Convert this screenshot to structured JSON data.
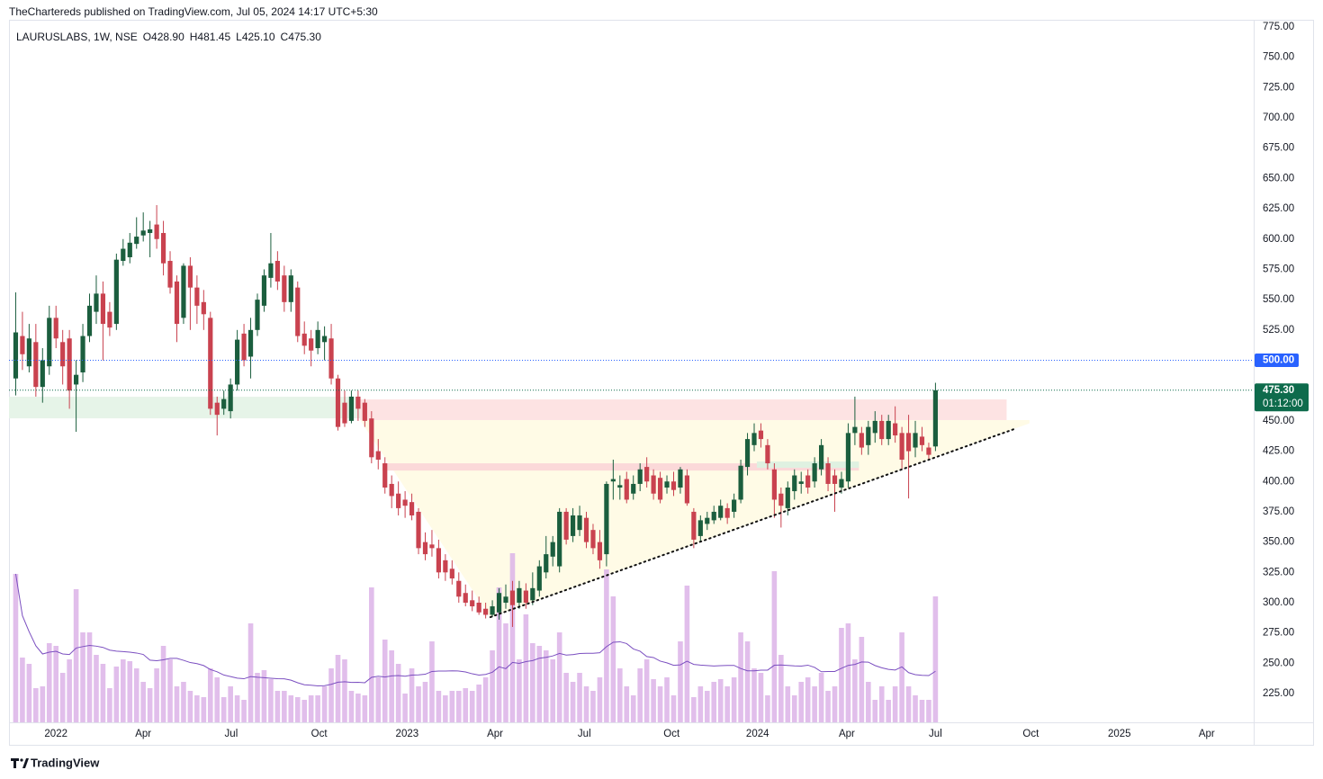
{
  "header": {
    "published": "TheChartereds published on TradingView.com, Jul 05, 2024 14:17 UTC+5:30",
    "symbol": "LAURUSLABS, 1W, NSE",
    "ohlc": [
      "O428.90",
      "H481.45",
      "L425.10",
      "C475.30"
    ]
  },
  "footer": {
    "brand": "TradingView"
  },
  "chart_data": {
    "type": "candlestick",
    "ohlc": [
      [
        485,
        556,
        471,
        523
      ],
      [
        520,
        540,
        492,
        505
      ],
      [
        495,
        530,
        490,
        518
      ],
      [
        515,
        530,
        470,
        478
      ],
      [
        478,
        510,
        465,
        500
      ],
      [
        495,
        545,
        488,
        535
      ],
      [
        535,
        545,
        510,
        518
      ],
      [
        515,
        525,
        480,
        495
      ],
      [
        518,
        525,
        460,
        475
      ],
      [
        480,
        500,
        441,
        488
      ],
      [
        490,
        530,
        482,
        520
      ],
      [
        520,
        555,
        515,
        545
      ],
      [
        540,
        570,
        530,
        555
      ],
      [
        555,
        565,
        500,
        530
      ],
      [
        540,
        548,
        520,
        527
      ],
      [
        530,
        588,
        525,
        583
      ],
      [
        582,
        600,
        578,
        592
      ],
      [
        585,
        605,
        580,
        597
      ],
      [
        596,
        618,
        592,
        602
      ],
      [
        603,
        622,
        598,
        607
      ],
      [
        605,
        615,
        585,
        608
      ],
      [
        612,
        628,
        592,
        600
      ],
      [
        605,
        615,
        570,
        580
      ],
      [
        582,
        590,
        555,
        560
      ],
      [
        565,
        570,
        515,
        530
      ],
      [
        535,
        580,
        530,
        578
      ],
      [
        578,
        585,
        525,
        560
      ],
      [
        560,
        570,
        530,
        545
      ],
      [
        548,
        558,
        525,
        538
      ],
      [
        535,
        540,
        455,
        460
      ],
      [
        465,
        470,
        438,
        455
      ],
      [
        460,
        475,
        455,
        468
      ],
      [
        458,
        485,
        452,
        480
      ],
      [
        480,
        525,
        475,
        517
      ],
      [
        522,
        530,
        495,
        500
      ],
      [
        503,
        535,
        485,
        525
      ],
      [
        525,
        555,
        520,
        550
      ],
      [
        545,
        575,
        540,
        570
      ],
      [
        568,
        605,
        560,
        580
      ],
      [
        582,
        590,
        558,
        565
      ],
      [
        570,
        578,
        540,
        548
      ],
      [
        548,
        575,
        540,
        570
      ],
      [
        560,
        565,
        515,
        520
      ],
      [
        522,
        532,
        505,
        512
      ],
      [
        518,
        525,
        495,
        508
      ],
      [
        510,
        532,
        505,
        525
      ],
      [
        515,
        528,
        500,
        520
      ],
      [
        518,
        530,
        480,
        485
      ],
      [
        485,
        488,
        442,
        445
      ],
      [
        465,
        475,
        445,
        448
      ],
      [
        450,
        475,
        448,
        470
      ],
      [
        470,
        475,
        450,
        460
      ],
      [
        465,
        468,
        445,
        450
      ],
      [
        452,
        458,
        415,
        420
      ],
      [
        425,
        435,
        410,
        418
      ],
      [
        415,
        420,
        390,
        395
      ],
      [
        398,
        405,
        378,
        388
      ],
      [
        390,
        400,
        372,
        378
      ],
      [
        385,
        392,
        370,
        380
      ],
      [
        383,
        390,
        368,
        372
      ],
      [
        375,
        378,
        340,
        345
      ],
      [
        350,
        358,
        335,
        340
      ],
      [
        348,
        360,
        338,
        345
      ],
      [
        345,
        352,
        320,
        325
      ],
      [
        335,
        340,
        318,
        325
      ],
      [
        328,
        335,
        315,
        320
      ],
      [
        318,
        325,
        300,
        305
      ],
      [
        308,
        315,
        297,
        300
      ],
      [
        302,
        310,
        293,
        297
      ],
      [
        300,
        305,
        290,
        292
      ],
      [
        295,
        300,
        287,
        290
      ],
      [
        290,
        302,
        288,
        297
      ],
      [
        292,
        312,
        286,
        308
      ],
      [
        300,
        315,
        295,
        305
      ],
      [
        310,
        318,
        280,
        298
      ],
      [
        300,
        318,
        295,
        312
      ],
      [
        310,
        316,
        295,
        300
      ],
      [
        302,
        325,
        298,
        312
      ],
      [
        310,
        335,
        305,
        330
      ],
      [
        325,
        355,
        320,
        340
      ],
      [
        338,
        355,
        330,
        350
      ],
      [
        330,
        378,
        325,
        375
      ],
      [
        375,
        378,
        348,
        352
      ],
      [
        355,
        378,
        350,
        372
      ],
      [
        360,
        380,
        355,
        372
      ],
      [
        370,
        375,
        345,
        350
      ],
      [
        360,
        365,
        340,
        345
      ],
      [
        350,
        360,
        328,
        335
      ],
      [
        340,
        400,
        330,
        398
      ],
      [
        400,
        418,
        385,
        402
      ],
      [
        395,
        405,
        385,
        397
      ],
      [
        402,
        408,
        382,
        385
      ],
      [
        390,
        405,
        385,
        398
      ],
      [
        398,
        415,
        392,
        410
      ],
      [
        412,
        420,
        395,
        400
      ],
      [
        405,
        410,
        385,
        390
      ],
      [
        403,
        408,
        382,
        385
      ],
      [
        395,
        405,
        390,
        400
      ],
      [
        400,
        408,
        388,
        393
      ],
      [
        395,
        412,
        390,
        410
      ],
      [
        405,
        410,
        380,
        382
      ],
      [
        375,
        378,
        345,
        352
      ],
      [
        355,
        372,
        350,
        368
      ],
      [
        365,
        375,
        360,
        370
      ],
      [
        368,
        380,
        365,
        375
      ],
      [
        370,
        385,
        368,
        380
      ],
      [
        378,
        382,
        365,
        370
      ],
      [
        375,
        390,
        370,
        385
      ],
      [
        385,
        418,
        382,
        413
      ],
      [
        412,
        440,
        405,
        435
      ],
      [
        430,
        448,
        425,
        440
      ],
      [
        442,
        448,
        428,
        435
      ],
      [
        430,
        435,
        410,
        415
      ],
      [
        410,
        415,
        370,
        385
      ],
      [
        390,
        395,
        362,
        380
      ],
      [
        378,
        400,
        372,
        395
      ],
      [
        392,
        410,
        385,
        405
      ],
      [
        398,
        408,
        390,
        400
      ],
      [
        405,
        410,
        390,
        395
      ],
      [
        400,
        420,
        395,
        415
      ],
      [
        410,
        435,
        405,
        430
      ],
      [
        415,
        420,
        392,
        398
      ],
      [
        405,
        410,
        375,
        398
      ],
      [
        395,
        408,
        390,
        402
      ],
      [
        400,
        448,
        395,
        440
      ],
      [
        440,
        470,
        430,
        445
      ],
      [
        440,
        445,
        422,
        428
      ],
      [
        430,
        450,
        422,
        445
      ],
      [
        440,
        458,
        432,
        450
      ],
      [
        450,
        455,
        430,
        435
      ],
      [
        435,
        455,
        430,
        450
      ],
      [
        448,
        462,
        432,
        438
      ],
      [
        440,
        445,
        410,
        418
      ],
      [
        440,
        455,
        386,
        425
      ],
      [
        428,
        450,
        420,
        440
      ],
      [
        437,
        445,
        425,
        430
      ],
      [
        428,
        432,
        418,
        422
      ],
      [
        428.9,
        481.45,
        425.1,
        475.3
      ]
    ],
    "volume": [
      165,
      72,
      65,
      38,
      40,
      88,
      85,
      55,
      70,
      148,
      100,
      100,
      75,
      65,
      38,
      62,
      70,
      68,
      60,
      45,
      38,
      60,
      85,
      70,
      40,
      45,
      35,
      30,
      28,
      60,
      50,
      28,
      40,
      30,
      25,
      110,
      55,
      58,
      48,
      35,
      35,
      30,
      28,
      25,
      30,
      30,
      40,
      60,
      75,
      70,
      35,
      32,
      30,
      150,
      50,
      92,
      80,
      65,
      32,
      60,
      40,
      45,
      90,
      35,
      30,
      35,
      35,
      38,
      35,
      42,
      50,
      80,
      150,
      110,
      188,
      70,
      120,
      88,
      85,
      80,
      70,
      100,
      55,
      45,
      55,
      40,
      35,
      50,
      170,
      140,
      60,
      40,
      30,
      60,
      70,
      48,
      40,
      50,
      30,
      90,
      152,
      28,
      40,
      35,
      45,
      48,
      40,
      50,
      100,
      90,
      60,
      55,
      30,
      168,
      75,
      40,
      30,
      45,
      50,
      40,
      55,
      35,
      40,
      105,
      110,
      70,
      95,
      45,
      25,
      40,
      25,
      40,
      100,
      40,
      30,
      25,
      25,
      140
    ],
    "up_color": "#1b5e3e",
    "down_color": "#c9424f",
    "volume_color": "#dcb3e8",
    "volume_ma_color": "#7b4fc0",
    "vlim": [
      0,
      200
    ],
    "xlim": [
      -1,
      184
    ],
    "ylim": [
      201.3,
      780.9
    ],
    "xticks": [
      {
        "value": 6,
        "label": "2022"
      },
      {
        "value": 19,
        "label": "Apr"
      },
      {
        "value": 32.1,
        "label": "Jul"
      },
      {
        "value": 45.2,
        "label": "Oct"
      },
      {
        "value": 58.3,
        "label": "2023"
      },
      {
        "value": 71.4,
        "label": "Apr"
      },
      {
        "value": 84.7,
        "label": "Jul"
      },
      {
        "value": 97.7,
        "label": "Oct"
      },
      {
        "value": 110.5,
        "label": "2024"
      },
      {
        "value": 123.8,
        "label": "Apr"
      },
      {
        "value": 137,
        "label": "Jul"
      },
      {
        "value": 151.2,
        "label": "Oct"
      },
      {
        "value": 164.4,
        "label": "2025"
      },
      {
        "value": 177.4,
        "label": "Apr"
      }
    ],
    "yticks": [
      {
        "value": 225,
        "label": "225.00"
      },
      {
        "value": 250,
        "label": "250.00"
      },
      {
        "value": 275,
        "label": "275.00"
      },
      {
        "value": 300,
        "label": "300.00"
      },
      {
        "value": 325,
        "label": "325.00"
      },
      {
        "value": 350,
        "label": "350.00"
      },
      {
        "value": 375,
        "label": "375.00"
      },
      {
        "value": 400,
        "label": "400.00"
      },
      {
        "value": 425,
        "label": "425.00"
      },
      {
        "value": 450,
        "label": "450.00"
      },
      {
        "value": 475,
        "label": "475.00"
      },
      {
        "value": 500,
        "label": "500.00"
      },
      {
        "value": 525,
        "label": "525.00"
      },
      {
        "value": 550,
        "label": "550.00"
      },
      {
        "value": 575,
        "label": "575.00"
      },
      {
        "value": 600,
        "label": "600.00"
      },
      {
        "value": 625,
        "label": "625.00"
      },
      {
        "value": 650,
        "label": "650.00"
      },
      {
        "value": 675,
        "label": "675.00"
      },
      {
        "value": 700,
        "label": "700.00"
      },
      {
        "value": 725,
        "label": "725.00"
      },
      {
        "value": 750,
        "label": "750.00"
      },
      {
        "value": 775,
        "label": "775.00"
      }
    ],
    "grid": false,
    "price_lines": [
      {
        "value": 500,
        "label": "500.00",
        "color": "#2962ff"
      },
      {
        "value": 475.3,
        "label": "475.30",
        "countdown": "01:12:00",
        "color": "#0e6b4c"
      }
    ],
    "drawings": [
      {
        "shape": "rect",
        "x": [
          -1,
          51.3
        ],
        "y": [
          452.1,
          469.9
        ],
        "color": "#e6f4e8"
      },
      {
        "shape": "rect",
        "x": [
          51.3,
          147.6
        ],
        "y": [
          450.7,
          467.7
        ],
        "color": "#fde3e3"
      },
      {
        "shape": "polygon",
        "x": [
          51.3,
          70.7,
          151,
          151
        ],
        "y": [
          450.7,
          288.1,
          448,
          450.7
        ],
        "color": "#fffbe6"
      },
      {
        "shape": "rect",
        "x": [
          54.6,
          125.6
        ],
        "y": [
          409,
          415
        ],
        "color": "#fbd9d9"
      },
      {
        "shape": "rect",
        "x": [
          110.4,
          125.6
        ],
        "y": [
          411.3,
          416.5
        ],
        "color": "#dff1e1"
      },
      {
        "shape": "line",
        "x": [
          70.7,
          148.7
        ],
        "y": [
          288.1,
          443.2
        ],
        "color": "#111111"
      }
    ]
  }
}
